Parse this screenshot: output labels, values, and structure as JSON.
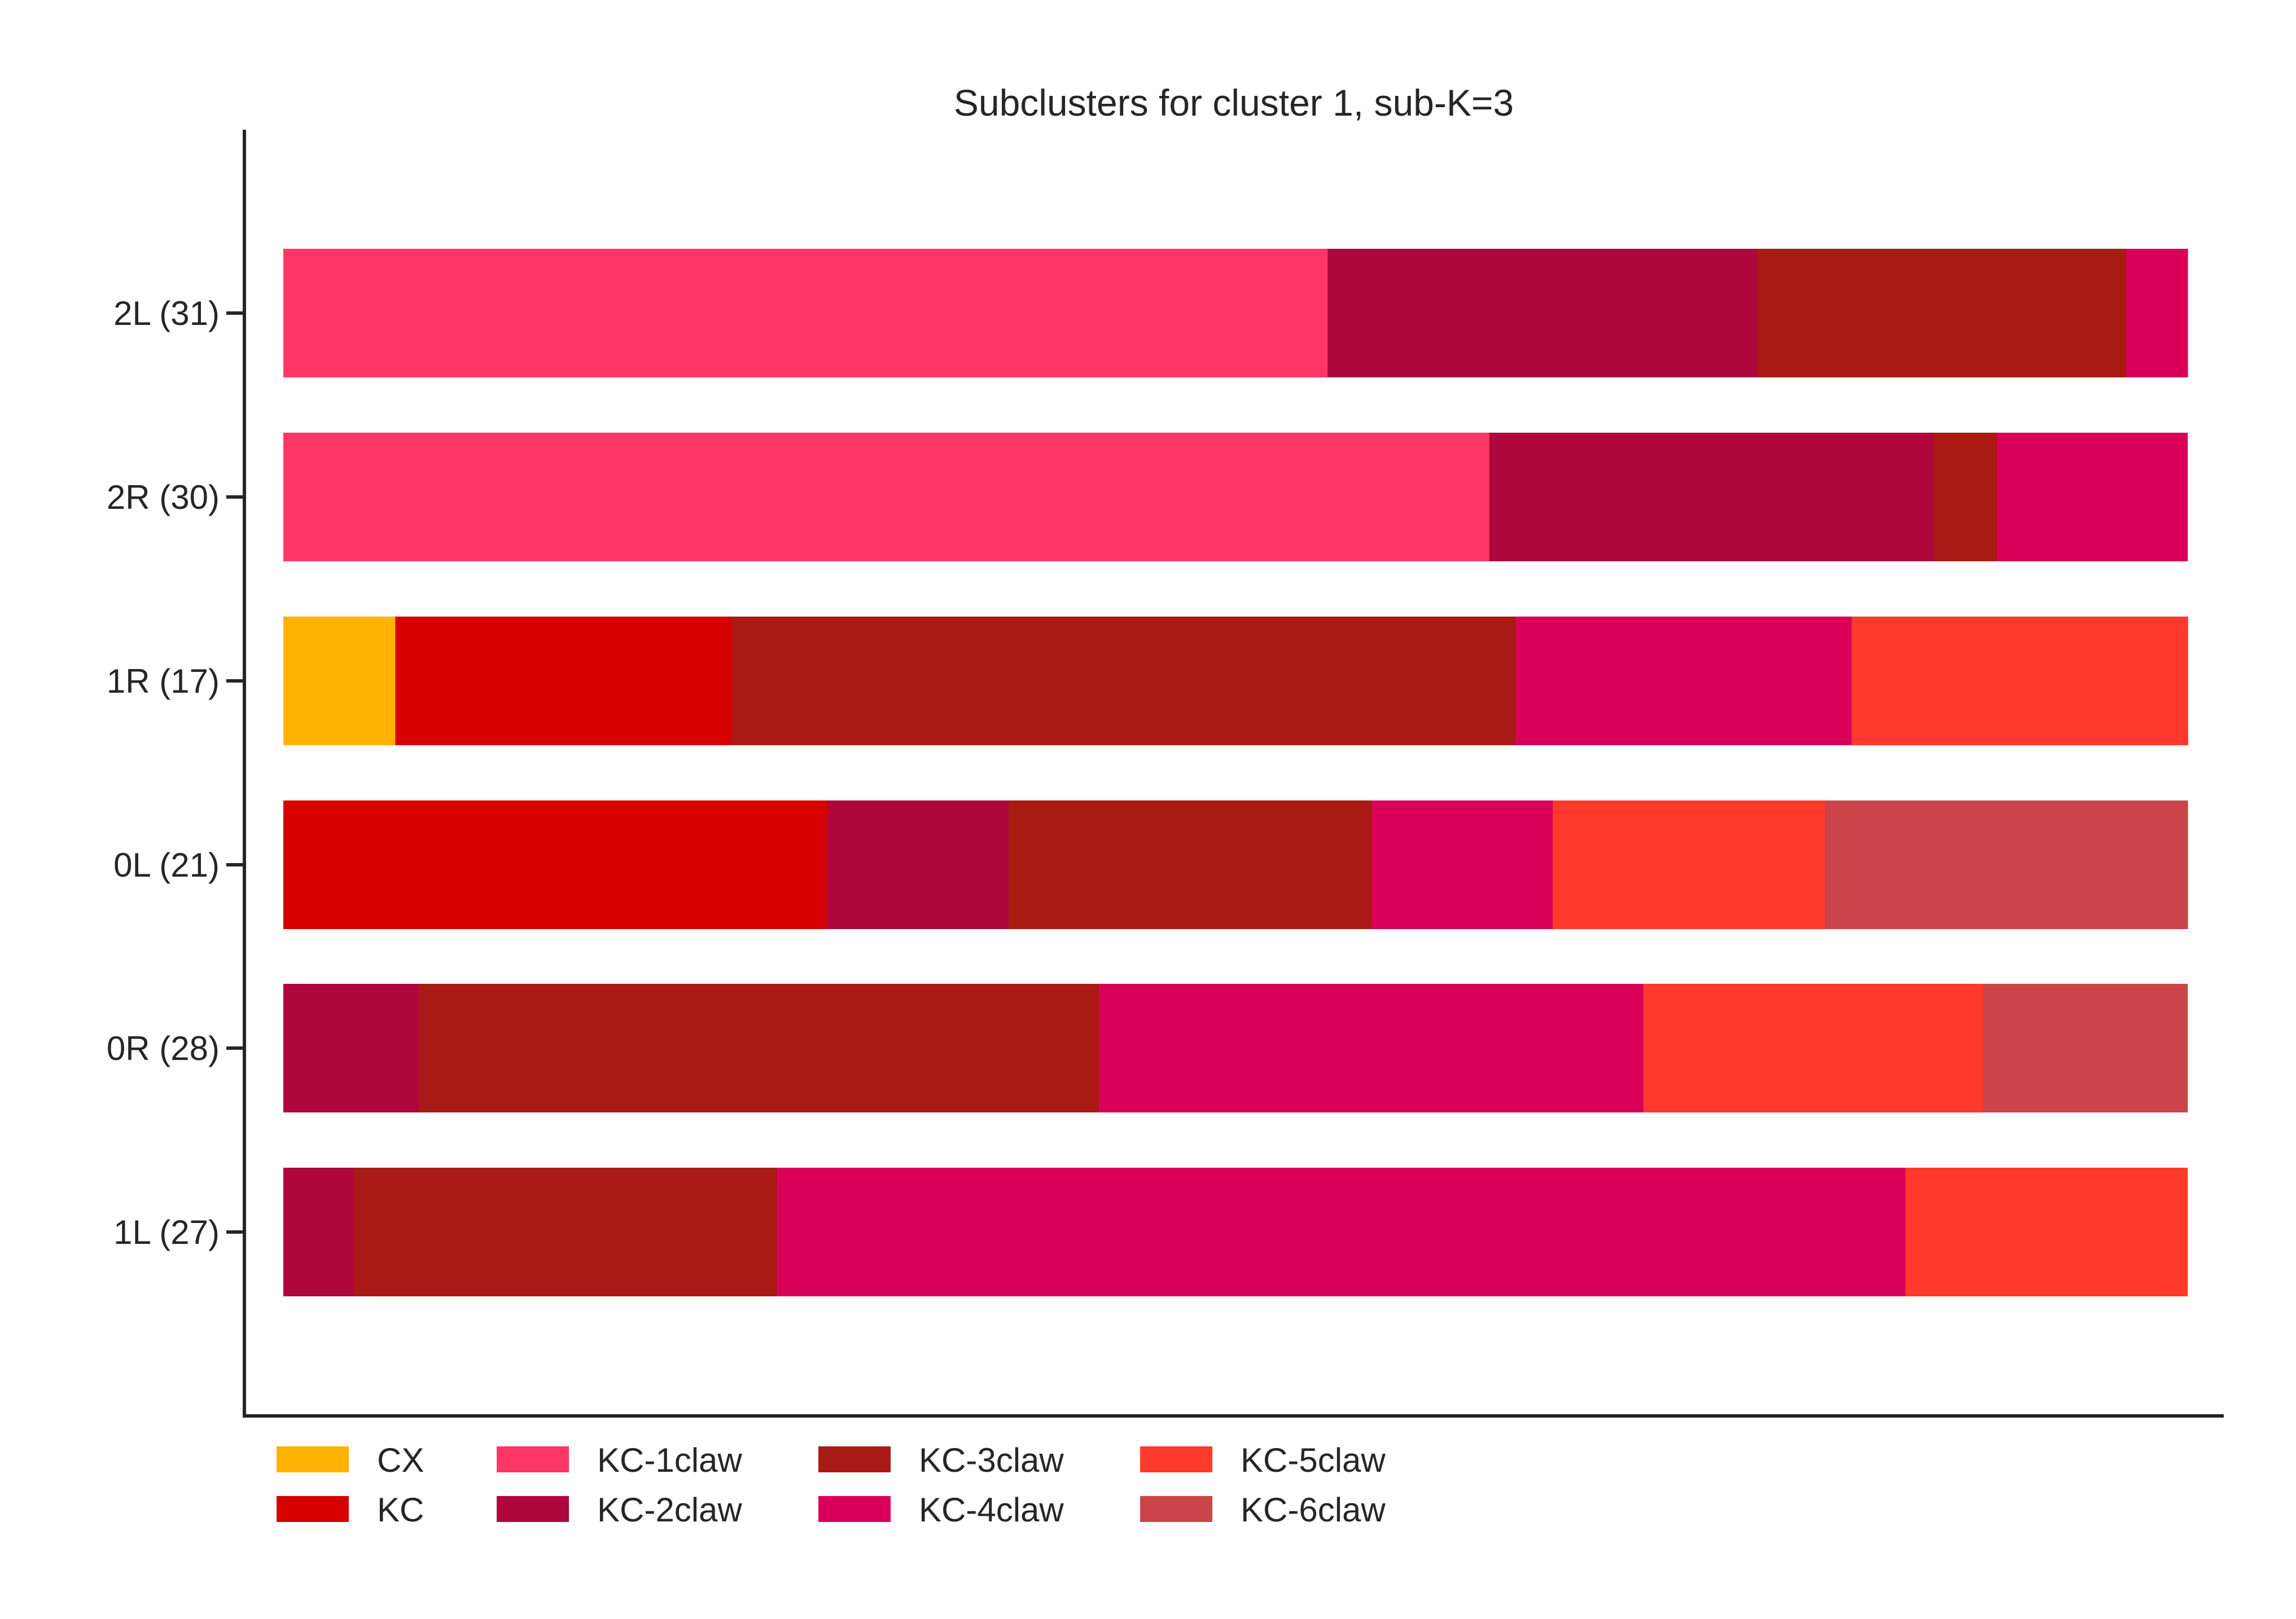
{
  "chart_data": {
    "type": "bar",
    "orientation": "horizontal",
    "stacked": true,
    "normalized": true,
    "title": "Subclusters for cluster 1, sub-K=3",
    "xlabel": "",
    "ylabel": "",
    "xlim": [
      0,
      1
    ],
    "grid": false,
    "legend_position": "bottom-left",
    "categories": [
      "2L (31)",
      "2R (30)",
      "1R (17)",
      "0L (21)",
      "0R (28)",
      "1L (27)"
    ],
    "series": [
      {
        "name": "CX",
        "color": "#FFB300",
        "values": [
          0,
          0,
          0.0588,
          0,
          0,
          0
        ]
      },
      {
        "name": "KC",
        "color": "#D60000",
        "values": [
          0,
          0,
          0.1765,
          0.2857,
          0,
          0
        ]
      },
      {
        "name": "KC-1claw",
        "color": "#FF3666",
        "values": [
          0.5484,
          0.6333,
          0,
          0,
          0,
          0
        ]
      },
      {
        "name": "KC-2claw",
        "color": "#AE073D",
        "values": [
          0.2258,
          0.2333,
          0,
          0.0952,
          0.0714,
          0.037
        ]
      },
      {
        "name": "KC-3claw",
        "color": "#AA1A14",
        "values": [
          0.1935,
          0.0333,
          0.4118,
          0.1905,
          0.3571,
          0.2222
        ]
      },
      {
        "name": "KC-4claw",
        "color": "#DA005A",
        "values": [
          0.0323,
          0.1,
          0.1765,
          0.0952,
          0.2857,
          0.5926
        ]
      },
      {
        "name": "KC-5claw",
        "color": "#FF392B",
        "values": [
          0,
          0,
          0.1765,
          0.1429,
          0.1786,
          0.1481
        ]
      },
      {
        "name": "KC-6claw",
        "color": "#CB4449",
        "values": [
          0,
          0,
          0,
          0.1905,
          0.1071,
          0
        ]
      }
    ]
  }
}
